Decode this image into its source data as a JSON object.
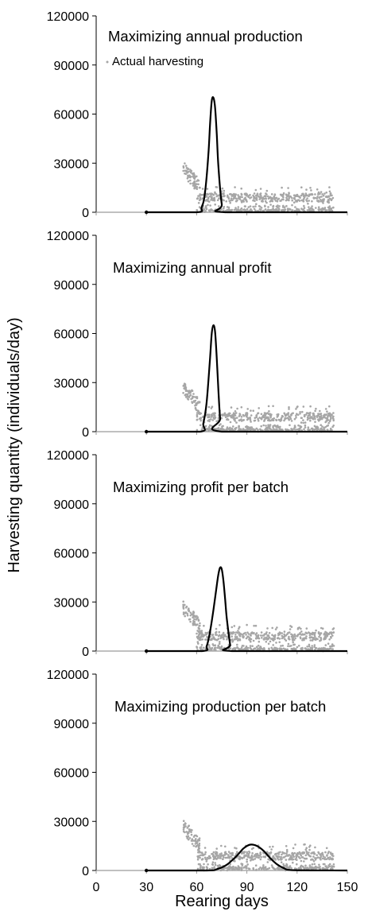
{
  "chart_data": {
    "type": "line",
    "ylabel": "Harvesting quantity (individuals/day)",
    "xlabel": "Rearing days",
    "xlim": [
      0,
      150
    ],
    "x_ticks": [
      "0",
      "30",
      "60",
      "90",
      "120",
      "150"
    ],
    "ylim": [
      0,
      120000
    ],
    "y_ticks": [
      "0",
      "30000",
      "60000",
      "90000",
      "120000"
    ],
    "grid": false,
    "legend": {
      "placement": "top-left",
      "entries": [
        {
          "label": "Actual harvesting",
          "marker": "dot",
          "color": "#a6a6a6"
        }
      ]
    },
    "colors": {
      "model_curve": "#000000",
      "actual_harvesting": "#a6a6a6",
      "axis": "#000000"
    },
    "panels": [
      {
        "title": "Maximizing annual production",
        "curve": {
          "flat_from": 30,
          "x": [
            30,
            60,
            63,
            65,
            67,
            68,
            69,
            70,
            71,
            72,
            73,
            75,
            77,
            150
          ],
          "y": [
            0,
            0,
            3000,
            12000,
            35000,
            54000,
            68000,
            70000,
            64000,
            48000,
            28000,
            5000,
            0,
            0
          ]
        }
      },
      {
        "title": "Maximizing annual profit",
        "curve": {
          "flat_from": 30,
          "x": [
            30,
            62,
            64,
            66,
            68,
            69,
            70,
            71,
            72,
            73,
            74,
            75,
            150
          ],
          "y": [
            0,
            0,
            5000,
            18000,
            45000,
            60000,
            65000,
            61000,
            45000,
            25000,
            8000,
            0,
            0
          ]
        }
      },
      {
        "title": "Maximizing profit per batch",
        "curve": {
          "flat_from": 30,
          "x": [
            30,
            63,
            66,
            68,
            70,
            72,
            73,
            74,
            75,
            76,
            77,
            78,
            80,
            81,
            150
          ],
          "y": [
            0,
            0,
            3000,
            12000,
            25000,
            40000,
            47000,
            51000,
            50000,
            43000,
            32000,
            20000,
            4000,
            0,
            0
          ]
        }
      },
      {
        "title": "Maximizing production per batch",
        "curve": {
          "flat_from": 30,
          "x": [
            30,
            66,
            72,
            78,
            84,
            88,
            92,
            96,
            100,
            104,
            108,
            112,
            118,
            150
          ],
          "y": [
            0,
            0,
            800,
            3500,
            9000,
            13500,
            15800,
            15000,
            12000,
            7500,
            3800,
            1500,
            200,
            0
          ]
        }
      }
    ],
    "actual_harvesting": {
      "description_free": true,
      "scatter_bands": [
        {
          "x": [
            52,
            62
          ],
          "y": [
            0,
            27000
          ]
        },
        {
          "x": [
            62,
            142
          ],
          "y": [
            0,
            17000
          ]
        }
      ]
    }
  }
}
